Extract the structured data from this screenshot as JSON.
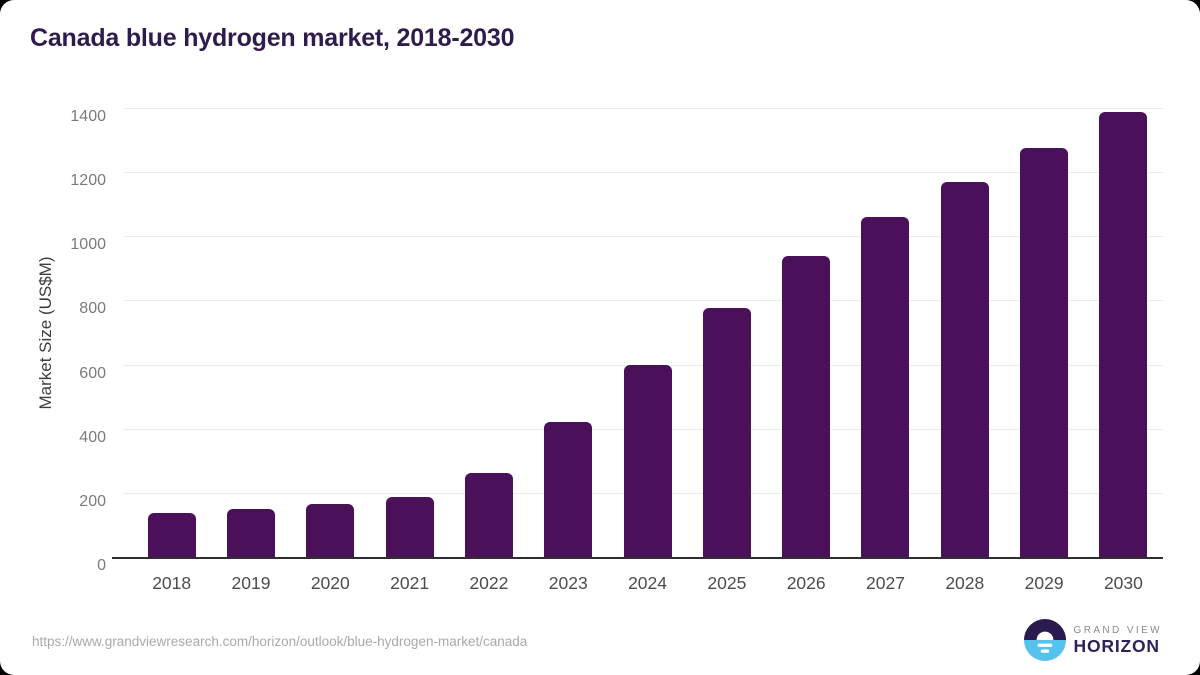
{
  "title": "Canada blue hydrogen market, 2018-2030",
  "chart_data": {
    "type": "bar",
    "title": "Canada blue hydrogen market, 2018-2030",
    "categories": [
      "2018",
      "2019",
      "2020",
      "2021",
      "2022",
      "2023",
      "2024",
      "2025",
      "2026",
      "2027",
      "2028",
      "2029",
      "2030"
    ],
    "values": [
      139,
      152,
      168,
      190,
      266,
      423,
      603,
      780,
      942,
      1063,
      1172,
      1278,
      1392
    ],
    "xlabel": "",
    "ylabel": "Market Size (US$M)",
    "ylim": [
      0,
      1400
    ],
    "yticks": [
      0,
      200,
      400,
      600,
      800,
      1000,
      1200,
      1400
    ],
    "grid": true,
    "legend": "none",
    "bar_color": "#4A115A",
    "gridline_color": "#ebebeb",
    "axis_line_color": "#2e2e2e",
    "ytick_color": "#7b7b7b",
    "xtick_color": "#4c4c4c",
    "ylabel_color": "#3d3d3d",
    "title_color": "#2F1B4D"
  },
  "footer": {
    "source_url": "https://www.grandviewresearch.com/horizon/outlook/blue-hydrogen-market/canada",
    "logo": {
      "line1": "GRAND VIEW",
      "line2": "HORIZON",
      "icon_top_color": "#2B1A4E",
      "icon_bottom_color": "#56C3EF"
    }
  }
}
